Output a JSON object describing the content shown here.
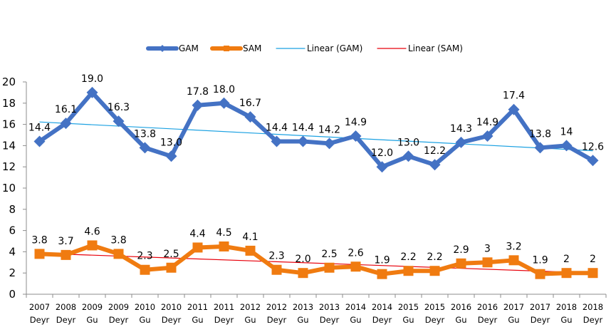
{
  "chart_data": {
    "type": "line",
    "title": "",
    "xlabel": "",
    "ylabel": "",
    "ylim": [
      0,
      20
    ],
    "yticks": [
      0,
      2,
      4,
      6,
      8,
      10,
      12,
      14,
      16,
      18,
      20
    ],
    "grid": false,
    "legend_position": "top-center",
    "categories": [
      [
        "2007",
        "Deyr"
      ],
      [
        "2008",
        "Deyr"
      ],
      [
        "2009",
        "Gu"
      ],
      [
        "2009",
        "Deyr"
      ],
      [
        "2010",
        "Gu"
      ],
      [
        "2010",
        "Deyr"
      ],
      [
        "2011",
        "Gu"
      ],
      [
        "2011",
        "Deyr"
      ],
      [
        "2012",
        "Gu"
      ],
      [
        "2012",
        "Deyr"
      ],
      [
        "2013",
        "Gu"
      ],
      [
        "2013",
        "Deyr"
      ],
      [
        "2014",
        "Gu"
      ],
      [
        "2014",
        "Deyr"
      ],
      [
        "2015",
        "Gu"
      ],
      [
        "2015",
        "Deyr"
      ],
      [
        "2016",
        "Gu"
      ],
      [
        "2016",
        "Deyr"
      ],
      [
        "2017",
        "Gu"
      ],
      [
        "2017",
        "Deyr"
      ],
      [
        "2018",
        "Gu"
      ],
      [
        "2018",
        "Deyr"
      ]
    ],
    "series": [
      {
        "name": "GAM",
        "color": "#4472C4",
        "marker": "diamond",
        "values": [
          14.4,
          16.1,
          19.0,
          16.3,
          13.8,
          13.0,
          17.8,
          18.0,
          16.7,
          14.4,
          14.4,
          14.2,
          14.9,
          12.0,
          13.0,
          12.2,
          14.3,
          14.9,
          17.4,
          13.8,
          14,
          12.6
        ],
        "labels": [
          "14.4",
          "16.1",
          "19.0",
          "16.3",
          "13.8",
          "13.0",
          "17.8",
          "18.0",
          "16.7",
          "14.4",
          "14.4",
          "14.2",
          "14.9",
          "12.0",
          "13.0",
          "12.2",
          "14.3",
          "14.9",
          "17.4",
          "13.8",
          "14",
          "12.6"
        ]
      },
      {
        "name": "SAM",
        "color": "#F07B10",
        "marker": "square",
        "values": [
          3.8,
          3.7,
          4.6,
          3.8,
          2.3,
          2.5,
          4.4,
          4.5,
          4.1,
          2.3,
          2.0,
          2.5,
          2.6,
          1.9,
          2.2,
          2.2,
          2.9,
          3,
          3.2,
          1.9,
          2,
          2
        ],
        "labels": [
          "3.8",
          "3.7",
          "4.6",
          "3.8",
          "2.3",
          "2.5",
          "4.4",
          "4.5",
          "4.1",
          "2.3",
          "2.0",
          "2.5",
          "2.6",
          "1.9",
          "2.2",
          "2.2",
          "2.9",
          "3",
          "3.2",
          "1.9",
          "2",
          "2"
        ]
      }
    ],
    "trendlines": [
      {
        "name": "Linear  (GAM)",
        "of": "GAM",
        "type": "linear",
        "color": "#1BA1E2"
      },
      {
        "name": "Linear  (SAM)",
        "of": "SAM",
        "type": "linear",
        "color": "#E8000B"
      }
    ],
    "legend": [
      "GAM",
      "SAM",
      "Linear  (GAM)",
      "Linear  (SAM)"
    ]
  }
}
